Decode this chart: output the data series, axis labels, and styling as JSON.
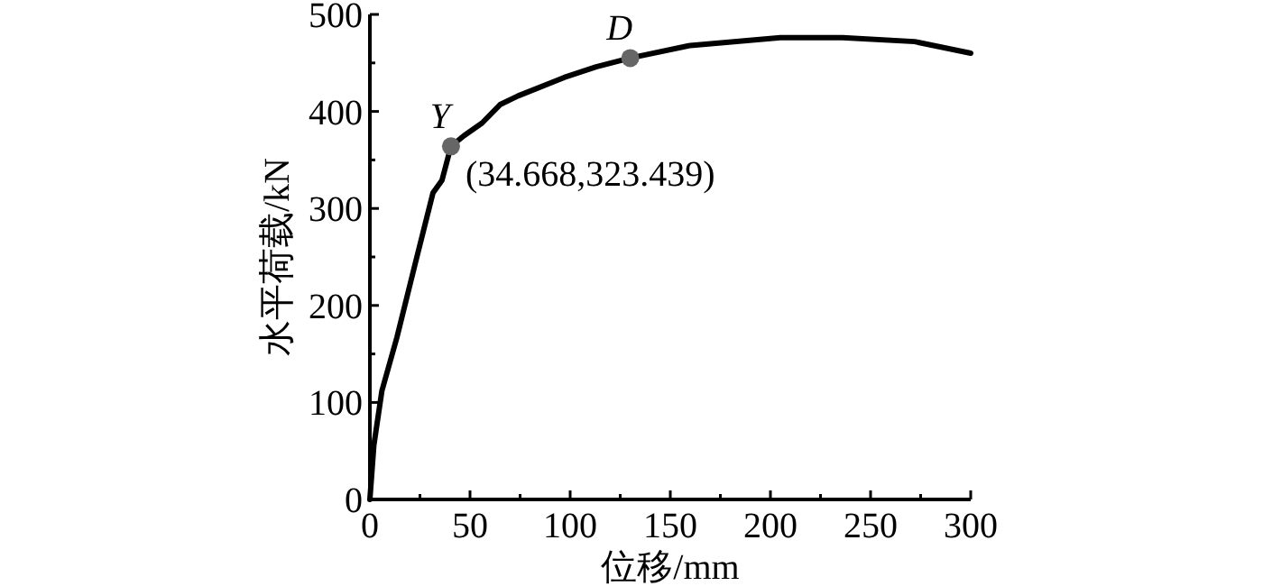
{
  "chart_data": {
    "type": "line",
    "xlabel": "位移/mm",
    "ylabel": "水平荷载/kN",
    "xlim": [
      0,
      300
    ],
    "ylim": [
      0,
      500
    ],
    "xticks": [
      0,
      {
        "value": 25,
        "label": null
      },
      50,
      {
        "value": 75,
        "label": null
      },
      100,
      {
        "value": 125,
        "label": null
      },
      150,
      {
        "value": 175,
        "label": null
      },
      200,
      {
        "value": 225,
        "label": null
      },
      250,
      {
        "value": 275,
        "label": null
      },
      300
    ],
    "yticks": [
      0,
      {
        "value": 50,
        "label": null
      },
      100,
      {
        "value": 150,
        "label": null
      },
      200,
      {
        "value": 250,
        "label": null
      },
      300,
      {
        "value": 350,
        "label": null
      },
      400,
      {
        "value": 450,
        "label": null
      },
      500
    ],
    "grid": false,
    "marker": "none",
    "line_style": "solid",
    "series": [
      {
        "color": "#000000",
        "x": [
          0,
          2,
          6,
          13.5,
          22.5,
          31.5,
          36,
          40.5,
          47,
          56,
          65,
          74,
          97,
          113,
          130,
          160,
          205,
          236,
          272,
          300
        ],
        "values": [
          0,
          56,
          112,
          167,
          242,
          316,
          329,
          364,
          375,
          388,
          407,
          416,
          435,
          446,
          455,
          468,
          476,
          476,
          472,
          460
        ]
      },
      {
        "type": "scatter",
        "color": "#666666",
        "marker": "circle",
        "x": [
          40.5,
          130
        ],
        "values": [
          364,
          455
        ]
      }
    ],
    "annotations": [
      {
        "text": "Y",
        "x": 40.5,
        "y": 364
      },
      {
        "text": "D",
        "x": 130,
        "y": 455
      },
      "(34.668,323.439)"
    ]
  }
}
